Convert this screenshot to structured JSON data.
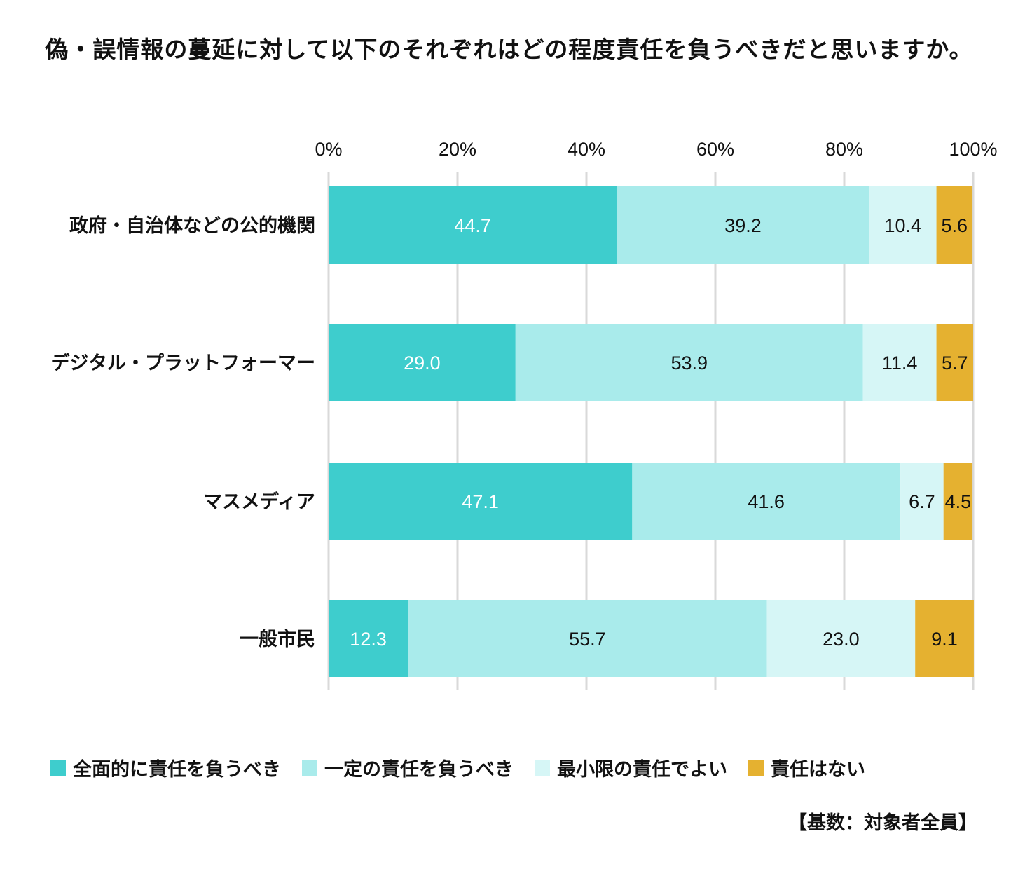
{
  "chart_data": {
    "type": "bar",
    "orientation": "horizontal",
    "stacked": true,
    "title": "偽・誤情報の蔓延に対して以下のそれぞれはどの程度責任を負うべきだと思いますか。",
    "categories": [
      "政府・自治体などの公的機関",
      "デジタル・プラットフォーマー",
      "マスメディア",
      "一般市民"
    ],
    "series": [
      {
        "name": "全面的に責任を負うべき",
        "color": "#3ECDCD",
        "label_color": "#ffffff",
        "values": [
          44.7,
          29.0,
          47.1,
          12.3
        ]
      },
      {
        "name": "一定の責任を負うべき",
        "color": "#A9EBEB",
        "label_color": "#111111",
        "values": [
          39.2,
          53.9,
          41.6,
          55.7
        ]
      },
      {
        "name": "最小限の責任でよい",
        "color": "#D6F6F6",
        "label_color": "#111111",
        "values": [
          10.4,
          11.4,
          6.7,
          23.0
        ]
      },
      {
        "name": "責任はない",
        "color": "#E5B130",
        "label_color": "#111111",
        "values": [
          5.6,
          5.7,
          4.5,
          9.1
        ]
      }
    ],
    "value_labels": [
      [
        "44.7",
        "29.0",
        "47.1",
        "12.3"
      ],
      [
        "39.2",
        "53.9",
        "41.6",
        "55.7"
      ],
      [
        "10.4",
        "11.4",
        "6.7",
        "23.0"
      ],
      [
        "5.6",
        "5.7",
        "4.5",
        "9.1"
      ]
    ],
    "xticks": [
      0,
      20,
      40,
      60,
      80,
      100
    ],
    "xtick_labels": [
      "0%",
      "20%",
      "40%",
      "60%",
      "80%",
      "100%"
    ],
    "xlim": [
      0,
      100
    ],
    "xaxis_position": "top",
    "grid": true,
    "legend_position": "bottom"
  },
  "note": "【基数：対象者全員】"
}
